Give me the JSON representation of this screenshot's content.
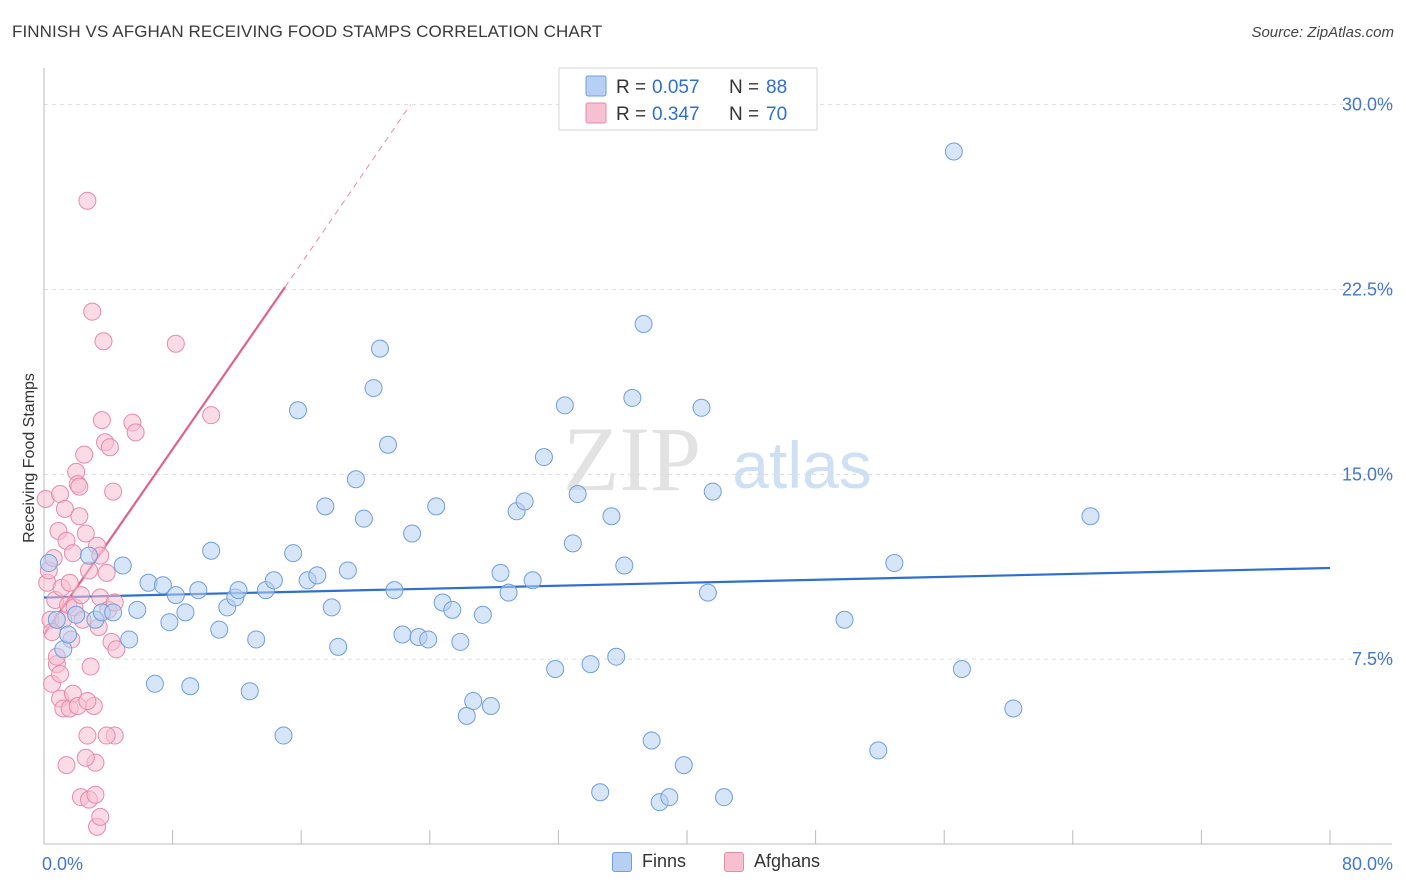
{
  "header": {
    "title": "FINNISH VS AFGHAN RECEIVING FOOD STAMPS CORRELATION CHART",
    "source": "Source: ZipAtlas.com"
  },
  "watermark": {
    "zip": "ZIP",
    "atlas": "atlas"
  },
  "colors": {
    "finns_fill": "#b7cff2",
    "finns_stroke": "#6f9fdc",
    "finns_line": "#2f6fce",
    "afghans_fill": "#f7c0d1",
    "afghans_stroke": "#e98aa8",
    "afghans_line": "#e0628c",
    "tick_label": "#4477cc",
    "grid": "#dddddd"
  },
  "legend": {
    "r_label": "R =",
    "n_label": "N =",
    "finns": {
      "r": "0.057",
      "n": "88"
    },
    "afghans": {
      "r": "0.347",
      "n": "70"
    }
  },
  "bottom_legend": {
    "finns": "Finns",
    "afghans": "Afghans"
  },
  "chart_data": {
    "type": "scatter",
    "title": "FINNISH VS AFGHAN RECEIVING FOOD STAMPS CORRELATION CHART",
    "xlabel": "",
    "ylabel": "Receiving Food Stamps",
    "xlim": [
      0,
      80
    ],
    "ylim": [
      0,
      31
    ],
    "x_tick_labels": [
      "0.0%",
      "80.0%"
    ],
    "y_ticks": [
      7.5,
      15.0,
      22.5,
      30.0
    ],
    "y_tick_labels": [
      "7.5%",
      "15.0%",
      "22.5%",
      "30.0%"
    ],
    "grid": "horizontal dashed",
    "legend_position": "top-center",
    "series": [
      {
        "name": "Finns",
        "r": 0.057,
        "n": 88,
        "trend": {
          "x": [
            0,
            80
          ],
          "y": [
            10.0,
            11.2
          ]
        },
        "points": [
          [
            0.3,
            11.4
          ],
          [
            0.8,
            9.1
          ],
          [
            1.2,
            7.9
          ],
          [
            1.5,
            8.5
          ],
          [
            2.0,
            9.3
          ],
          [
            2.8,
            11.7
          ],
          [
            3.2,
            9.1
          ],
          [
            3.6,
            9.4
          ],
          [
            4.3,
            9.4
          ],
          [
            4.9,
            11.3
          ],
          [
            5.3,
            8.3
          ],
          [
            5.8,
            9.5
          ],
          [
            6.5,
            10.6
          ],
          [
            6.9,
            6.5
          ],
          [
            7.4,
            10.5
          ],
          [
            7.8,
            9.0
          ],
          [
            8.2,
            10.1
          ],
          [
            8.8,
            9.4
          ],
          [
            9.1,
            6.4
          ],
          [
            9.6,
            10.3
          ],
          [
            10.4,
            11.9
          ],
          [
            10.9,
            8.7
          ],
          [
            11.4,
            9.6
          ],
          [
            11.9,
            10.0
          ],
          [
            12.1,
            10.3
          ],
          [
            12.8,
            6.2
          ],
          [
            13.2,
            8.3
          ],
          [
            13.8,
            10.3
          ],
          [
            14.3,
            10.7
          ],
          [
            14.9,
            4.4
          ],
          [
            15.5,
            11.8
          ],
          [
            15.8,
            17.6
          ],
          [
            16.4,
            10.7
          ],
          [
            17.0,
            10.9
          ],
          [
            17.5,
            13.7
          ],
          [
            17.9,
            9.6
          ],
          [
            18.3,
            8.0
          ],
          [
            18.9,
            11.1
          ],
          [
            19.4,
            14.8
          ],
          [
            19.9,
            13.2
          ],
          [
            20.5,
            18.5
          ],
          [
            20.9,
            20.1
          ],
          [
            21.4,
            16.2
          ],
          [
            21.8,
            10.3
          ],
          [
            22.3,
            8.5
          ],
          [
            22.9,
            12.6
          ],
          [
            23.3,
            8.4
          ],
          [
            23.9,
            8.3
          ],
          [
            24.4,
            13.7
          ],
          [
            24.8,
            9.8
          ],
          [
            25.4,
            9.5
          ],
          [
            25.9,
            8.2
          ],
          [
            26.3,
            5.2
          ],
          [
            26.7,
            5.8
          ],
          [
            27.3,
            9.3
          ],
          [
            27.8,
            5.6
          ],
          [
            28.4,
            11.0
          ],
          [
            28.9,
            10.2
          ],
          [
            29.4,
            13.5
          ],
          [
            29.9,
            13.9
          ],
          [
            30.4,
            10.7
          ],
          [
            31.1,
            15.7
          ],
          [
            31.8,
            7.1
          ],
          [
            32.4,
            17.8
          ],
          [
            32.9,
            12.2
          ],
          [
            33.2,
            14.2
          ],
          [
            34.0,
            7.3
          ],
          [
            34.6,
            2.1
          ],
          [
            35.3,
            13.3
          ],
          [
            35.6,
            7.6
          ],
          [
            36.1,
            11.3
          ],
          [
            36.6,
            18.1
          ],
          [
            37.3,
            21.1
          ],
          [
            37.8,
            4.2
          ],
          [
            38.3,
            1.7
          ],
          [
            38.9,
            1.9
          ],
          [
            39.8,
            3.2
          ],
          [
            40.9,
            17.7
          ],
          [
            41.3,
            10.2
          ],
          [
            41.6,
            14.3
          ],
          [
            42.3,
            1.9
          ],
          [
            49.8,
            9.1
          ],
          [
            51.9,
            3.8
          ],
          [
            52.9,
            11.4
          ],
          [
            56.6,
            28.1
          ],
          [
            57.1,
            7.1
          ],
          [
            60.3,
            5.5
          ],
          [
            65.1,
            13.3
          ]
        ]
      },
      {
        "name": "Afghans",
        "r": 0.347,
        "n": 70,
        "trend": {
          "x": [
            0,
            15
          ],
          "y": [
            8.5,
            22.6
          ]
        },
        "trend_extension": {
          "x": [
            15,
            22.8
          ],
          "y": [
            22.6,
            30.0
          ]
        },
        "points": [
          [
            0.1,
            14.0
          ],
          [
            0.2,
            10.6
          ],
          [
            0.3,
            11.1
          ],
          [
            0.4,
            9.1
          ],
          [
            0.5,
            8.6
          ],
          [
            0.6,
            11.6
          ],
          [
            0.7,
            9.9
          ],
          [
            0.8,
            7.3
          ],
          [
            0.9,
            12.7
          ],
          [
            1.0,
            14.2
          ],
          [
            1.1,
            10.4
          ],
          [
            1.2,
            9.1
          ],
          [
            1.3,
            13.6
          ],
          [
            1.4,
            12.3
          ],
          [
            1.5,
            9.7
          ],
          [
            1.6,
            10.6
          ],
          [
            1.7,
            8.3
          ],
          [
            1.8,
            11.8
          ],
          [
            1.9,
            9.6
          ],
          [
            2.0,
            15.1
          ],
          [
            2.1,
            14.6
          ],
          [
            2.2,
            13.3
          ],
          [
            2.3,
            10.1
          ],
          [
            2.4,
            9.1
          ],
          [
            2.5,
            15.8
          ],
          [
            2.6,
            12.6
          ],
          [
            2.7,
            26.1
          ],
          [
            2.8,
            11.1
          ],
          [
            2.9,
            7.2
          ],
          [
            3.0,
            21.6
          ],
          [
            3.1,
            5.6
          ],
          [
            3.2,
            3.3
          ],
          [
            3.3,
            12.1
          ],
          [
            3.4,
            8.8
          ],
          [
            3.5,
            10.0
          ],
          [
            3.6,
            17.2
          ],
          [
            3.7,
            20.4
          ],
          [
            3.8,
            16.3
          ],
          [
            3.9,
            11.0
          ],
          [
            4.0,
            9.5
          ],
          [
            4.1,
            16.1
          ],
          [
            4.2,
            8.2
          ],
          [
            4.3,
            14.3
          ],
          [
            4.4,
            4.4
          ],
          [
            4.5,
            7.9
          ],
          [
            5.5,
            17.1
          ],
          [
            5.7,
            16.7
          ],
          [
            8.2,
            20.3
          ],
          [
            10.4,
            17.4
          ],
          [
            0.5,
            6.5
          ],
          [
            0.8,
            7.6
          ],
          [
            1.0,
            5.9
          ],
          [
            1.2,
            5.5
          ],
          [
            1.4,
            3.2
          ],
          [
            1.6,
            5.5
          ],
          [
            1.8,
            6.1
          ],
          [
            2.1,
            5.6
          ],
          [
            2.3,
            1.9
          ],
          [
            2.6,
            3.5
          ],
          [
            2.8,
            1.8
          ],
          [
            3.2,
            2.0
          ],
          [
            3.3,
            0.7
          ],
          [
            3.5,
            1.1
          ],
          [
            2.7,
            4.4
          ],
          [
            2.7,
            5.8
          ],
          [
            1.0,
            6.9
          ],
          [
            3.9,
            4.4
          ],
          [
            4.4,
            9.8
          ],
          [
            2.2,
            14.5
          ],
          [
            3.5,
            11.7
          ]
        ]
      }
    ]
  }
}
